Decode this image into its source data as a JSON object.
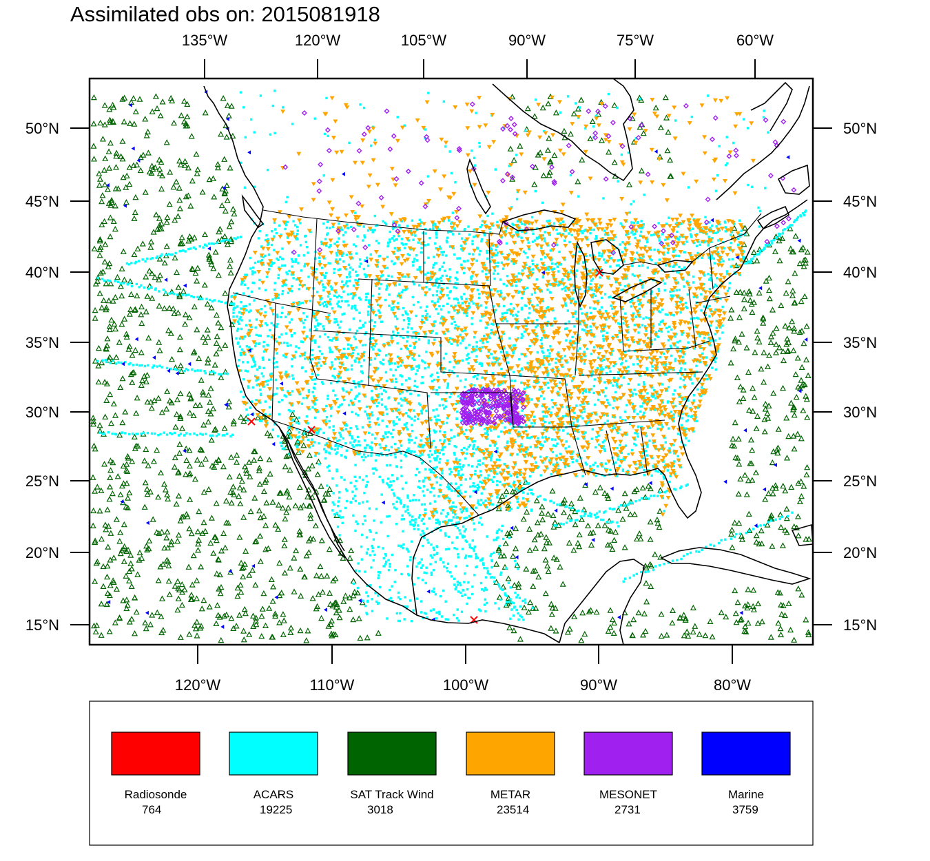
{
  "title": "Assimilated obs on: 2015081918",
  "top_axis": [
    "135°W",
    "120°W",
    "105°W",
    "90°W",
    "75°W",
    "60°W"
  ],
  "bottom_axis": [
    "120°W",
    "110°W",
    "100°W",
    "90°W",
    "80°W"
  ],
  "left_axis": [
    "50°N",
    "45°N",
    "40°N",
    "35°N",
    "30°N",
    "25°N",
    "20°N",
    "15°N"
  ],
  "right_axis": [
    "50°N",
    "45°N",
    "40°N",
    "35°N",
    "30°N",
    "25°N",
    "20°N",
    "15°N"
  ],
  "legend": [
    {
      "name": "Radiosonde",
      "count": "764",
      "color": "#ff0000"
    },
    {
      "name": "ACARS",
      "count": "19225",
      "color": "#00ffff"
    },
    {
      "name": "SAT Track Wind",
      "count": "3018",
      "color": "#006400"
    },
    {
      "name": "METAR",
      "count": "23514",
      "color": "#ffa500"
    },
    {
      "name": "MESONET",
      "count": "2731",
      "color": "#a020f0"
    },
    {
      "name": "Marine",
      "count": "3759",
      "color": "#0000ff"
    }
  ],
  "colors": {
    "frame": "#000000",
    "coastline": "#000000"
  }
}
